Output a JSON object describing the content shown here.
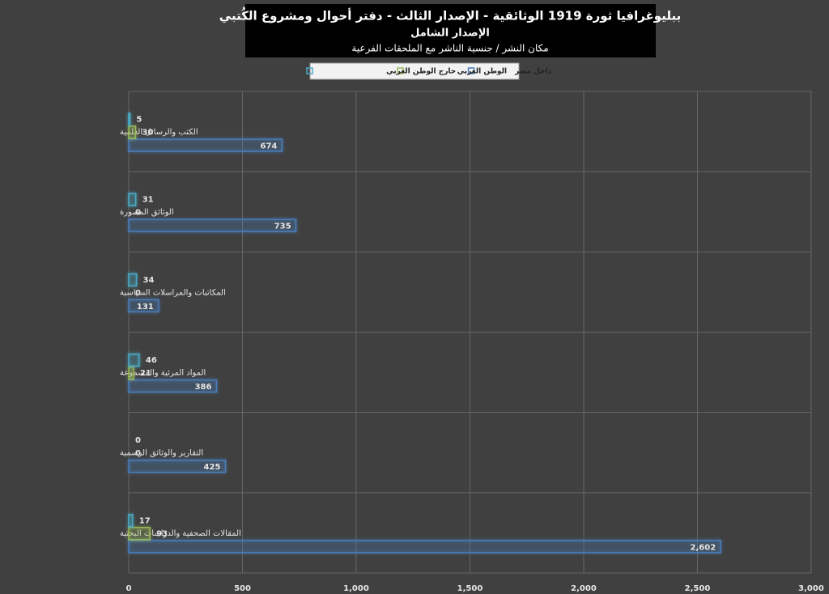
{
  "chart_data": {
    "type": "hbar",
    "title": "ببليوغرافيا ثورة 1919 الوثائقية - الإصدار الثالث - دفتر أحوال ومشروع الكُتبي",
    "subtitle": "الإصدار الشامل",
    "subtitle2": "مكان النشر / جنسية الناشر مع الملحقات الفرعية",
    "categories": [
      "الكتب والرسائل العلمية",
      "الوثائق المصورة",
      "المكاتبات والمراسلات السياسية",
      "المواد المرئية والمسموعة",
      "التقارير والوثائق الرسمية",
      "المقالات الصحفية والدراسات البحثية"
    ],
    "series": [
      {
        "name": "داخل مصر",
        "color": "#4a7ebb",
        "values": [
          674,
          735,
          131,
          386,
          425,
          2602
        ],
        "value_labels": [
          "674",
          "735",
          "131",
          "386",
          "425",
          "2,602"
        ]
      },
      {
        "name": "الوطن العربي",
        "color": "#9bbb59",
        "values": [
          30,
          0,
          0,
          21,
          0,
          93
        ]
      },
      {
        "name": "خارج الوطن العربي",
        "color": "#4bacc6",
        "values": [
          5,
          31,
          34,
          46,
          0,
          17
        ]
      }
    ],
    "xlim": [
      0,
      3000
    ],
    "xticks": [
      0,
      500,
      {
        "value": 1000,
        "label": "1,000"
      },
      {
        "value": 1500,
        "label": "1,500"
      },
      {
        "value": 2000,
        "label": "2,000"
      },
      {
        "value": 2500,
        "label": "2,500"
      },
      {
        "value": 3000,
        "label": "3,000"
      }
    ],
    "grid": true
  }
}
